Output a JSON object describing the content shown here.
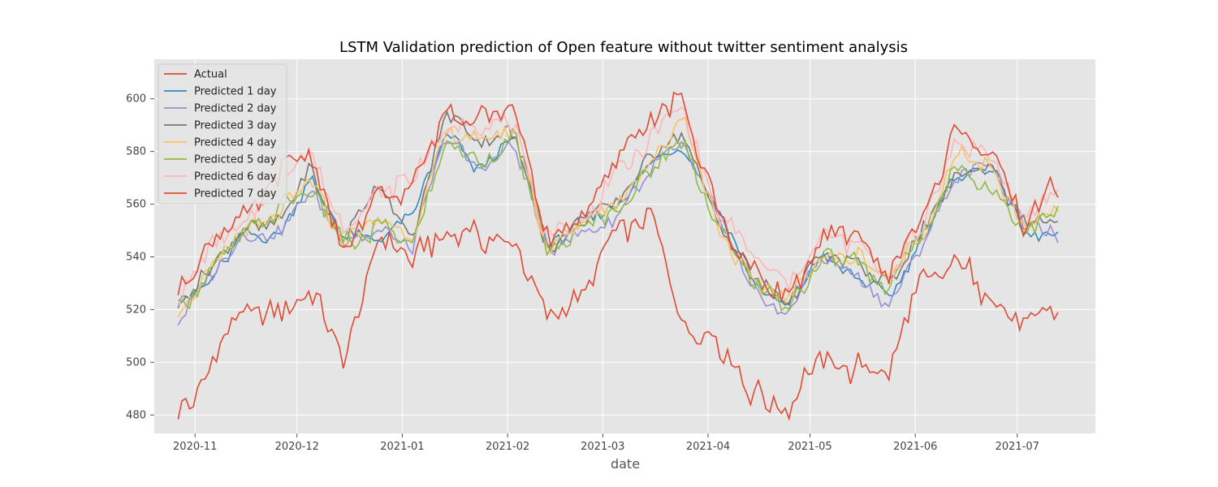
{
  "chart_data": {
    "type": "line",
    "title": "LSTM Validation prediction of Open feature without twitter sentiment analysis",
    "xlabel": "date",
    "ylabel": "",
    "xlim": [
      "2020-10-20",
      "2021-07-24"
    ],
    "ylim": [
      473,
      615
    ],
    "x_ticks": [
      {
        "date": "2020-11-01",
        "label": "2020-11"
      },
      {
        "date": "2020-12-01",
        "label": "2020-12"
      },
      {
        "date": "2021-01-01",
        "label": "2021-01"
      },
      {
        "date": "2021-02-01",
        "label": "2021-02"
      },
      {
        "date": "2021-03-01",
        "label": "2021-03"
      },
      {
        "date": "2021-04-01",
        "label": "2021-04"
      },
      {
        "date": "2021-05-01",
        "label": "2021-05"
      },
      {
        "date": "2021-06-01",
        "label": "2021-06"
      },
      {
        "date": "2021-07-01",
        "label": "2021-07"
      }
    ],
    "y_ticks": [
      480,
      500,
      520,
      540,
      560,
      580,
      600
    ],
    "grid": true,
    "legend_position": "top-left",
    "key_dates": [
      "2020-10-27",
      "2020-11-06",
      "2020-11-15",
      "2020-11-25",
      "2020-12-05",
      "2020-12-15",
      "2020-12-25",
      "2021-01-04",
      "2021-01-14",
      "2021-01-24",
      "2021-02-03",
      "2021-02-13",
      "2021-02-23",
      "2021-03-05",
      "2021-03-15",
      "2021-03-25",
      "2021-04-04",
      "2021-04-14",
      "2021-04-24",
      "2021-05-04",
      "2021-05-14",
      "2021-05-24",
      "2021-06-03",
      "2021-06-13",
      "2021-06-23",
      "2021-07-03",
      "2021-07-13"
    ],
    "series": [
      {
        "name": "Actual",
        "color": "#E24A33",
        "values": [
          479,
          500,
          518,
          516,
          528,
          498,
          546,
          540,
          552,
          547,
          546,
          513,
          526,
          549,
          555,
          510,
          508,
          489,
          482,
          504,
          497,
          494,
          531,
          538,
          526,
          514,
          519
        ]
      },
      {
        "name": "Predicted 1 day",
        "color": "#348ABD",
        "values": [
          524,
          530,
          550,
          548,
          570,
          548,
          548,
          555,
          588,
          572,
          585,
          545,
          552,
          560,
          575,
          582,
          557,
          532,
          520,
          541,
          532,
          525,
          546,
          570,
          575,
          550,
          548
        ]
      },
      {
        "name": "Predicted 2 day",
        "color": "#988ED5",
        "values": [
          516,
          533,
          549,
          549,
          567,
          545,
          550,
          545,
          585,
          574,
          584,
          543,
          550,
          556,
          573,
          583,
          553,
          528,
          518,
          538,
          534,
          522,
          543,
          571,
          577,
          550,
          548
        ]
      },
      {
        "name": "Predicted 3 day",
        "color": "#777777",
        "values": [
          522,
          535,
          551,
          553,
          573,
          546,
          570,
          546,
          596,
          583,
          588,
          543,
          553,
          560,
          580,
          588,
          552,
          533,
          522,
          541,
          540,
          528,
          549,
          572,
          575,
          552,
          553
        ]
      },
      {
        "name": "Predicted 4 day",
        "color": "#FBC15E",
        "values": [
          519,
          537,
          549,
          557,
          569,
          545,
          553,
          547,
          588,
          583,
          588,
          541,
          554,
          562,
          577,
          592,
          551,
          531,
          524,
          542,
          541,
          531,
          549,
          580,
          573,
          551,
          558
        ]
      },
      {
        "name": "Predicted 5 day",
        "color": "#8EBA42",
        "values": [
          518,
          536,
          548,
          557,
          567,
          544,
          551,
          544,
          584,
          577,
          585,
          540,
          551,
          558,
          573,
          585,
          552,
          532,
          520,
          539,
          541,
          528,
          547,
          576,
          567,
          549,
          556
        ]
      },
      {
        "name": "Predicted 6 day",
        "color": "#FFB5B8",
        "values": [
          523,
          543,
          548,
          568,
          580,
          548,
          565,
          570,
          588,
          592,
          590,
          546,
          555,
          570,
          585,
          596,
          557,
          540,
          528,
          547,
          545,
          532,
          552,
          583,
          578,
          555,
          563
        ]
      },
      {
        "name": "Predicted 7 day",
        "color": "#E24A33",
        "values": [
          525,
          548,
          555,
          570,
          580,
          540,
          565,
          565,
          594,
          595,
          596,
          544,
          555,
          575,
          595,
          598,
          556,
          536,
          523,
          545,
          550,
          534,
          554,
          590,
          580,
          553,
          568
        ]
      }
    ]
  }
}
